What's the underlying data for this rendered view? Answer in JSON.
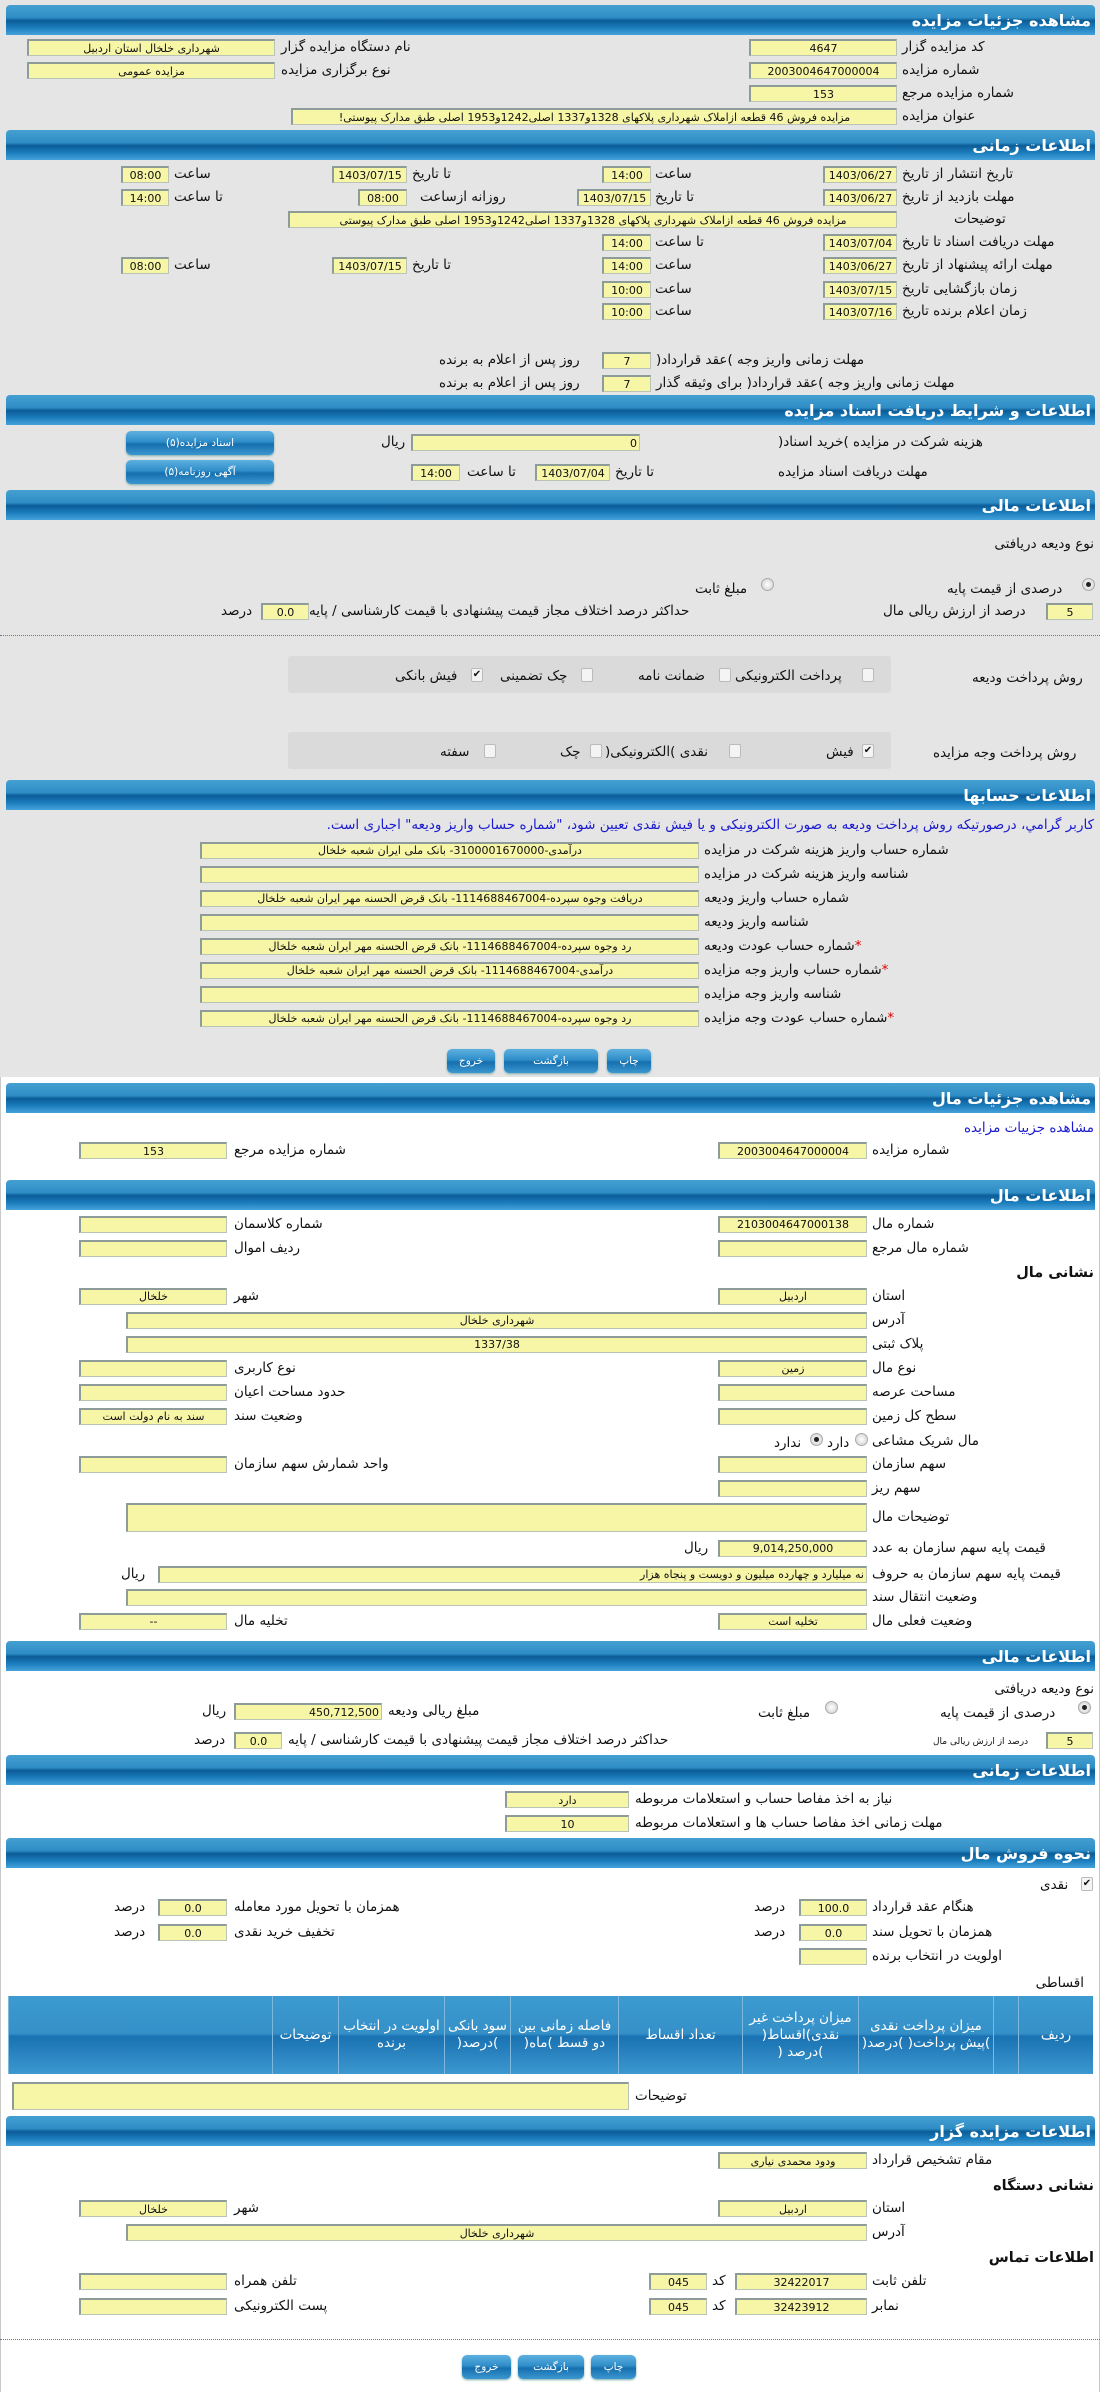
{
  "colors": {
    "header": "#1c7dbd",
    "field": "#f7f5a6",
    "notice": "#1a1ad0",
    "background": "#e5e5e5"
  },
  "auction": {
    "title": "مشاهده جزئیات مزایده",
    "code_label": "کد مزایده گزار",
    "code": "4647",
    "org_label": "نام دستگاه مزایده گزار",
    "org": "شهرداری خلخال استان اردبیل",
    "number_label": "شماره مزایده",
    "number": "2003004647000004",
    "type_label": "نوع برگزاری مزایده",
    "type": "مزایده عمومی",
    "ref_label": "شماره مزایده مرجع",
    "ref": "153",
    "subject_label": "عنوان مزایده",
    "subject": "مزایده فروش 46 قطعه ازاملاک شهرداری پلاکهای 1328و1337 اصلی1242و1953 اصلی طبق مدارک پیوستی!"
  },
  "timing": {
    "title": "اطلاعات زمانی",
    "publish_label": "تاریخ انتشار  از تاریخ",
    "publish_from": "1403/06/27",
    "hour": "ساعت",
    "publish_from_time": "14:00",
    "to_date": "تا تاریخ",
    "publish_to": "1403/07/15",
    "publish_to_time": "08:00",
    "visit_label": "مهلت بازدید  از تاریخ",
    "visit_from": "1403/06/27",
    "visit_to": "1403/07/15",
    "daily_from_label": "روزانه ازساعت",
    "daily_from": "08:00",
    "to_hour": "تا ساعت",
    "daily_to": "14:00",
    "desc_label": "توضیحات",
    "desc": "مزایده فروش 46 قطعه ازاملاک شهرداری پلاکهای 1328و1337 اصلی1242و1953 اصلی طبق مدارک پیوستی",
    "docs_label": "مهلت دریافت اسناد  تا تاریخ",
    "docs_to": "1403/07/04",
    "docs_time": "14:00",
    "offer_label": "مهلت ارائه پیشنهاد  از تاریخ",
    "offer_from": "1403/06/27",
    "offer_from_time": "14:00",
    "offer_to": "1403/07/15",
    "offer_to_time": "08:00",
    "open_label": "زمان بازگشایی  تاریخ",
    "open_date": "1403/07/15",
    "open_time": "10:00",
    "winner_label": "زمان اعلام برنده  تاریخ",
    "winner_date": "1403/07/16",
    "winner_time": "10:00",
    "pay_label": "مهلت زمانی واریز وجه )عقد قرارداد(",
    "pay_days": "7",
    "days_after": "روز پس از اعلام به برنده",
    "pay_guarantor_label": "مهلت زمانی واریز وجه )عقد قرارداد( برای وثیقه گذار",
    "pay_guarantor_days": "7"
  },
  "documents": {
    "title": "اطلاعات و شرایط دریافت اسناد مزایده",
    "fee_label": "هزینه شرکت در مزایده )خرید اسناد(",
    "fee": "0",
    "currency": "ریال",
    "deadline_label": "مهلت دریافت اسناد مزایده",
    "to_date": "تا تاریخ",
    "date": "1403/07/04",
    "to_hour": "تا ساعت",
    "time": "14:00",
    "docs_button": "اسناد مزایده(۵)",
    "ad_button": "آگهی روزنامه(۵)"
  },
  "finance": {
    "title": "اطلاعات مالی",
    "deposit_type_label": "نوع ودیعه دریافتی",
    "percent_option": "درصدی از قیمت پایه",
    "percent_selected": true,
    "fixed_option": "مبلغ ثابت",
    "percent_value": "5",
    "percent_label": "درصد از ارزش ریالی مال",
    "max_diff_label": "حداکثر درصد اختلاف مجاز قیمت پیشنهادی با قیمت کارشناسی / پایه",
    "max_diff": "0.0",
    "percent_unit": "درصد",
    "deposit_method_label": "روش پرداخت ودیعه",
    "deposit_methods": [
      {
        "label": "پرداخت الکترونیکی",
        "checked": false
      },
      {
        "label": "ضمانت نامه",
        "checked": false
      },
      {
        "label": "چک تضمینی",
        "checked": false
      },
      {
        "label": "فیش بانکی",
        "checked": true
      }
    ],
    "payment_method_label": "روش پرداخت وجه مزایده",
    "payment_methods": [
      {
        "label": "فیش",
        "checked": true
      },
      {
        "label": "نقدی )الکترونیکی(",
        "checked": false
      },
      {
        "label": "چک",
        "checked": false
      },
      {
        "label": "سفته",
        "checked": false
      }
    ]
  },
  "accounts": {
    "title": "اطلاعات حسابها",
    "notice": "کاربر گرامي، درصورتیکه روش پرداخت ودیعه به صورت الکترونیکی و یا فیش نقدی تعیین شود، \"شماره حساب واریز ودیعه\" اجباری است.",
    "rows": [
      {
        "label": "شماره حساب واریز هزینه شرکت در مزایده",
        "value": "درآمدی-3100001670000- بانک ملی ایران شعبه خلخال",
        "required": false
      },
      {
        "label": "شناسه واریز هزینه شرکت در مزایده",
        "value": "",
        "required": false
      },
      {
        "label": "شماره حساب واریز ودیعه",
        "value": "دریافت وجوه سپرده-1114688467004- بانک قرض الحسنه مهر ایران شعبه خلخال",
        "required": false
      },
      {
        "label": "شناسه واریز ودیعه",
        "value": "",
        "required": false
      },
      {
        "label": "شماره حساب عودت ودیعه",
        "value": "رد وجوه سپرده-1114688467004- بانک قرض الحسنه مهر ایران شعبه خلخال",
        "required": true
      },
      {
        "label": "شماره حساب واریز وجه مزایده",
        "value": "درآمدی-1114688467004- بانک قرض الحسنه مهر ایران شعبه خلخال",
        "required": true
      },
      {
        "label": "شناسه واریز وجه مزایده",
        "value": "",
        "required": false
      },
      {
        "label": "شماره حساب عودت وجه مزایده",
        "value": "رد وجوه سپرده-1114688467004- بانک قرض الحسنه مهر ایران شعبه خلخال",
        "required": true
      }
    ],
    "star": "*"
  },
  "buttons": {
    "print": "چاپ",
    "back": "بازگشت",
    "exit": "خروج"
  },
  "item": {
    "title": "مشاهده جزئیات مال",
    "auction_link": "مشاهده جزییات مزایده",
    "number_label": "شماره مزایده",
    "number": "2003004647000004",
    "ref_label": "شماره مزایده مرجع",
    "ref": "153",
    "info_title": "اطلاعات مال",
    "item_no_label": "شماره مال",
    "item_no": "2103004647000138",
    "class_label": "شماره کلاسمان",
    "class_no": "",
    "item_ref_label": "شماره مال مرجع",
    "item_ref": "",
    "row_label": "ردیف اموال",
    "row_no": "",
    "address_heading": "نشانی مال",
    "province_label": "استان",
    "province": "اردبیل",
    "city_label": "شهر",
    "city": "خلخال",
    "address_label": "آدرس",
    "address": "شهرداری خلخال",
    "plaque_label": "پلاک ثبتی",
    "plaque": "1337/38",
    "kind_label": "نوع مال",
    "kind": "زمین",
    "usage_label": "نوع کاربری",
    "usage": "",
    "area_label": "مساحت عرصه",
    "area": "",
    "building_label": "حدود مساحت اعیان",
    "building": "",
    "land_label": "سطح کل زمین",
    "land": "",
    "deed_label": "وضعیت سند",
    "deed": "سند به نام دولت است",
    "shared_label": "مال شریک مشاعی",
    "shared_yes": "دارد",
    "shared_no": "ندارد",
    "shared": false,
    "share_label": "سهم سازمان",
    "share": "",
    "share_unit_label": "واحد شمارش سهم سازمان",
    "share_unit": "",
    "minor_label": "سهم ریز",
    "minor": "",
    "notes_label": "توضیحات مال",
    "notes": "",
    "base_num_label": "قیمت پایه سهم سازمان به عدد",
    "base_num": "9,014,250,000",
    "currency": "ریال",
    "base_text_label": "قیمت پایه سهم سازمان به حروف",
    "base_text": "نه میلیارد و چهارده میلیون و دویست و پنجاه هزار",
    "transfer_label": "وضعیت انتقال سند",
    "transfer": "",
    "status_label": "وضعیت فعلی مال",
    "status": "تخلیه است",
    "vacate_label": "تخلیه مال",
    "vacate": "--"
  },
  "item_finance": {
    "title": "اطلاعات مالی",
    "deposit_type_label": "نوع ودیعه دریافتی",
    "percent_option": "درصدی از قیمت پایه",
    "fixed_option": "مبلغ ثابت",
    "amount_label": "مبلغ ریالی ودیعه",
    "amount": "450,712,500",
    "currency": "ریال",
    "percent_value": "5",
    "percent_label": "درصد از ارزش ریالی مال",
    "max_diff_label": "حداکثر درصد اختلاف مجاز قیمت پیشنهادی با قیمت کارشناسی / پایه",
    "max_diff": "0.0",
    "percent_unit": "درصد"
  },
  "item_timing": {
    "title": "اطلاعات زمانی",
    "clearance_label": "نیاز به اخذ مفاصا حساب و استعلامات مربوطه",
    "clearance": "دارد",
    "clearance_days_label": "مهلت زمانی اخذ مفاصا حساب ها و استعلامات مربوطه",
    "clearance_days": "10"
  },
  "sale": {
    "title": "نحوه فروش مال",
    "cash_label": "نقدی",
    "cash_checked": true,
    "contract_label": "هنگام عقد قرارداد",
    "contract": "100.0",
    "delivery_label": "همزمان با تحویل مورد معامله",
    "delivery": "0.0",
    "deed_label": "همزمان با تحویل سند",
    "deed": "0.0",
    "discount_label": "تخفیف خرید نقدی",
    "discount": "0.0",
    "priority_label": "اولویت در انتخاب برنده",
    "priority": "",
    "unit": "درصد",
    "installment_label": "اقساطی",
    "columns": [
      "ردیف",
      "",
      "میزان پرداخت نقدی )پیش پرداخت( )درصد(",
      "میزان پرداخت غیر نقدی)اقساط( )درصد (",
      "تعداد اقساط",
      "فاصله زمانی بین دو قسط )ماه(",
      "سود بانکی )درصد(",
      "اولویت در انتخاب برنده",
      "توضیحات",
      ""
    ],
    "notes_label": "توضیحات",
    "notes": ""
  },
  "organizer": {
    "title": "اطلاعات مزایده گزار",
    "authority_label": "مقام تشخیص قرارداد",
    "authority": "ودود محمدی نیاری",
    "address_heading": "نشانی دستگاه",
    "province_label": "استان",
    "province": "اردبیل",
    "city_label": "شهر",
    "city": "خلخال",
    "address_label": "آدرس",
    "address": "شهرداری خلخال",
    "contact_heading": "اطلاعات تماس",
    "phone_label": "تلفن ثابت",
    "phone": "32422017",
    "code_label": "کد",
    "phone_code": "045",
    "mobile_label": "تلفن همراه",
    "mobile": "",
    "fax_label": "نمابر",
    "fax": "32423912",
    "fax_code": "045",
    "email_label": "پست الکترونیکی",
    "email": ""
  }
}
